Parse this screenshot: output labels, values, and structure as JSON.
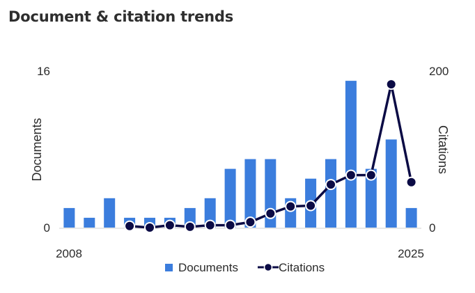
{
  "title": "Document & citation trends",
  "chart_data": {
    "type": "bar",
    "title": "Document & citation trends",
    "x": [
      2008,
      2009,
      2010,
      2011,
      2012,
      2013,
      2014,
      2015,
      2016,
      2017,
      2018,
      2019,
      2020,
      2021,
      2022,
      2023,
      2024,
      2025
    ],
    "x_tick_labels": [
      "2008",
      "2025"
    ],
    "y_left": {
      "label": "Documents",
      "lim": [
        0,
        16
      ],
      "tick_labels": [
        "0",
        "16"
      ]
    },
    "y_right": {
      "label": "Citations",
      "lim": [
        0,
        200
      ],
      "tick_labels": [
        "0",
        "200"
      ]
    },
    "series": [
      {
        "name": "Documents",
        "type": "bar",
        "axis": "left",
        "color": "#3b7ddd",
        "values": [
          2,
          1,
          3,
          1,
          1,
          1,
          2,
          3,
          6,
          7,
          7,
          3,
          5,
          7,
          15,
          6,
          9,
          2
        ]
      },
      {
        "name": "Citations",
        "type": "line",
        "axis": "right",
        "color": "#0b0b45",
        "values": [
          null,
          null,
          null,
          2,
          0,
          3,
          1,
          3,
          3,
          7,
          18,
          27,
          28,
          55,
          67,
          67,
          183,
          58
        ]
      }
    ],
    "legend": {
      "position": "bottom"
    },
    "grid": false
  }
}
